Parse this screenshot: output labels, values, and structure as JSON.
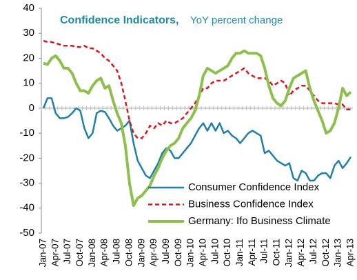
{
  "chart_data": {
    "type": "line",
    "title": "Confidence Indicators,",
    "subtitle": "YoY percent change",
    "categories": [
      "Jan-07",
      null,
      null,
      "Apr-07",
      null,
      null,
      "Jul-07",
      null,
      null,
      "Oct-07",
      null,
      null,
      "Jan-08",
      null,
      null,
      "Apr-08",
      null,
      null,
      "Jul-08",
      null,
      null,
      "Oct-08",
      null,
      null,
      "Jan-09",
      null,
      null,
      "Apr-09",
      null,
      null,
      "Jul-09",
      null,
      null,
      "Oct-09",
      null,
      null,
      "Jan-10",
      null,
      null,
      "Apr-10",
      null,
      null,
      "Jul-10",
      null,
      null,
      "Oct-10",
      null,
      null,
      "Jan-11",
      null,
      null,
      "Apr-11",
      null,
      null,
      "Jul-11",
      null,
      null,
      "Oct-11",
      null,
      null,
      "Jan-12",
      null,
      null,
      "Apr-12",
      null,
      null,
      "Jul-12",
      null,
      null,
      "Oct-12",
      null,
      null,
      "Jan-13",
      null,
      null,
      "Apr-13"
    ],
    "series": [
      {
        "name": "Consumer Confidence Index",
        "color": "#1f7fa8",
        "style": "solid",
        "width": 2.5,
        "values": [
          0,
          4,
          4,
          -2,
          -4,
          -4,
          -3.5,
          -2,
          0,
          -1,
          -8,
          -12,
          -10,
          -2,
          -1,
          -1.5,
          -4,
          -7,
          -9,
          -8,
          -7,
          -5,
          -14,
          -21,
          -24,
          -27,
          -28,
          -25,
          -22,
          -18,
          -16,
          -17,
          -20,
          -20,
          -18,
          -16,
          -14,
          -11,
          -8,
          -6,
          -9,
          -6,
          -9,
          -6,
          -10,
          -9,
          -11,
          -12,
          -14,
          -12,
          -10,
          -9,
          -10,
          -11,
          -18,
          -17,
          -19,
          -21,
          -22,
          -23,
          -22,
          -28,
          -29,
          -25,
          -26,
          -29,
          -29,
          -27,
          -26,
          -26,
          -28,
          -23,
          -21,
          -24,
          -22,
          -19.5
        ]
      },
      {
        "name": "Business Confidence Index",
        "color": "#e0141e",
        "style": "dashed",
        "width": 2.5,
        "values": [
          27,
          26.5,
          26.5,
          26,
          25.5,
          25,
          25,
          25,
          24.5,
          24.5,
          25,
          24,
          24,
          23,
          22,
          20,
          19,
          17,
          15,
          10,
          3,
          -5,
          -10,
          -12,
          -12,
          -10,
          -7,
          -8,
          -6,
          -7,
          -5,
          -6,
          -6,
          -5,
          -4,
          -2,
          0,
          2,
          5,
          8,
          8,
          10,
          11,
          11,
          11,
          12,
          13,
          14,
          15,
          16,
          14,
          13,
          12,
          12,
          12,
          11,
          9,
          10,
          11,
          10,
          5,
          7,
          8,
          9,
          9,
          7,
          5,
          3,
          2,
          2,
          2,
          2,
          1.5,
          1.5,
          -0.5,
          -0.5
        ]
      },
      {
        "name": "Germany: Ifo Business Climate",
        "color": "#8cc04b",
        "style": "solid",
        "width": 4,
        "values": [
          18,
          17.5,
          20,
          21,
          19,
          16,
          16,
          14,
          10,
          7,
          7,
          6,
          9,
          11,
          12,
          8,
          9,
          3,
          -2,
          -6,
          -15,
          -30,
          -39,
          -36,
          -35,
          -33,
          -31,
          -27,
          -24,
          -20,
          -17,
          -15,
          -14,
          -12,
          -8,
          -6,
          -4,
          -1,
          5,
          13,
          16,
          15,
          14,
          15,
          16,
          17,
          20,
          22,
          22,
          23,
          22,
          22,
          22,
          21,
          16,
          9,
          4,
          2,
          1,
          3,
          8,
          12,
          13,
          14,
          15,
          8,
          3,
          -1,
          -5,
          -10,
          -9,
          -6,
          0,
          8,
          5,
          6.5
        ]
      }
    ],
    "ylim": [
      -50,
      40
    ],
    "yticks": [
      -50,
      -40,
      -30,
      -20,
      -10,
      0,
      10,
      20,
      30,
      40
    ],
    "grid": false,
    "legend": "lower right"
  }
}
